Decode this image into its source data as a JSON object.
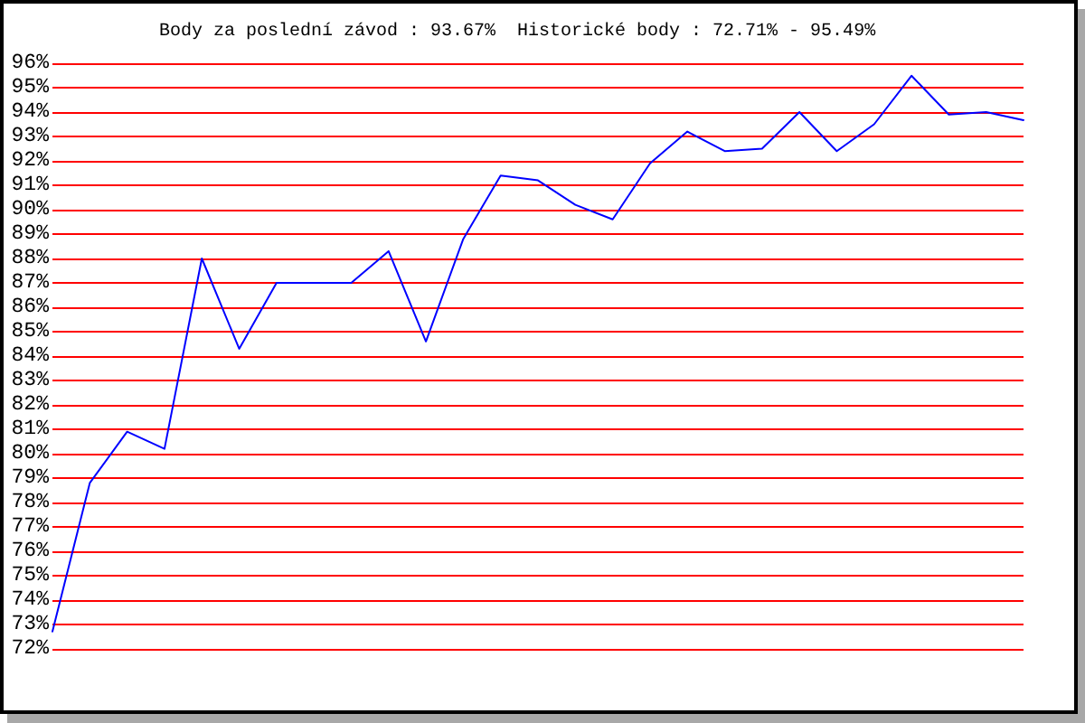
{
  "chart_data": {
    "type": "line",
    "title": "Body za poslední závod : 93.67%  Historické body : 72.71% - 95.49%",
    "categories": [
      null,
      null,
      null,
      null,
      null,
      null,
      null,
      null,
      null,
      null,
      null,
      null,
      null,
      null,
      null,
      null,
      null,
      null,
      null,
      null,
      null,
      null,
      null,
      null,
      null,
      null,
      null
    ],
    "values": [
      72.71,
      78.8,
      80.9,
      80.2,
      88.0,
      84.3,
      87.0,
      87.0,
      87.0,
      88.3,
      84.6,
      88.8,
      91.4,
      91.2,
      90.2,
      89.6,
      91.9,
      93.2,
      92.4,
      92.5,
      94.0,
      92.4,
      93.5,
      95.49,
      93.9,
      94.0,
      93.67
    ],
    "color": "#0000ff",
    "ylim": [
      72,
      96
    ],
    "yticks": [
      {
        "value": 72,
        "label": "72%"
      },
      {
        "value": 73,
        "label": "73%"
      },
      {
        "value": 74,
        "label": "74%"
      },
      {
        "value": 75,
        "label": "75%"
      },
      {
        "value": 76,
        "label": "76%"
      },
      {
        "value": 77,
        "label": "77%"
      },
      {
        "value": 78,
        "label": "78%"
      },
      {
        "value": 79,
        "label": "79%"
      },
      {
        "value": 80,
        "label": "80%"
      },
      {
        "value": 81,
        "label": "81%"
      },
      {
        "value": 82,
        "label": "82%"
      },
      {
        "value": 83,
        "label": "83%"
      },
      {
        "value": 84,
        "label": "84%"
      },
      {
        "value": 85,
        "label": "85%"
      },
      {
        "value": 86,
        "label": "86%"
      },
      {
        "value": 87,
        "label": "87%"
      },
      {
        "value": 88,
        "label": "88%"
      },
      {
        "value": 89,
        "label": "89%"
      },
      {
        "value": 90,
        "label": "90%"
      },
      {
        "value": 91,
        "label": "91%"
      },
      {
        "value": 92,
        "label": "92%"
      },
      {
        "value": 93,
        "label": "93%"
      },
      {
        "value": 94,
        "label": "94%"
      },
      {
        "value": 95,
        "label": "95%"
      },
      {
        "value": 96,
        "label": "96%"
      }
    ],
    "grid": "y",
    "tick_labels": "y",
    "marker": "none",
    "line_style": "solid"
  }
}
